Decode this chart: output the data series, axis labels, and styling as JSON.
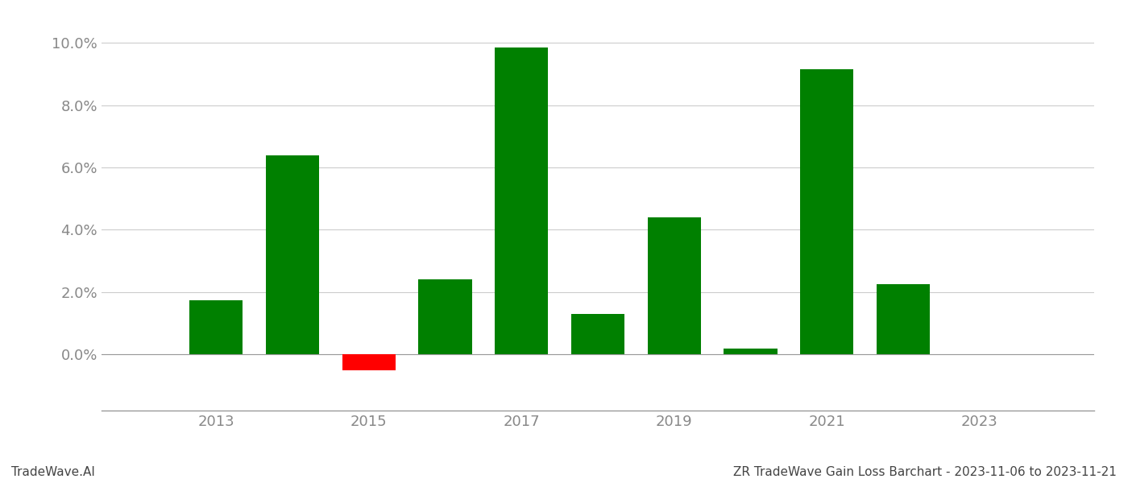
{
  "years": [
    2013,
    2014,
    2015,
    2016,
    2017,
    2018,
    2019,
    2020,
    2021,
    2022
  ],
  "values": [
    0.0175,
    0.064,
    -0.005,
    0.024,
    0.0985,
    0.013,
    0.044,
    0.002,
    0.0915,
    0.0225
  ],
  "colors": [
    "#008000",
    "#008000",
    "#ff0000",
    "#008000",
    "#008000",
    "#008000",
    "#008000",
    "#008000",
    "#008000",
    "#008000"
  ],
  "ylim": [
    -0.018,
    0.106
  ],
  "yticks": [
    0.0,
    0.02,
    0.04,
    0.06,
    0.08,
    0.1
  ],
  "xticks": [
    2013,
    2015,
    2017,
    2019,
    2021,
    2023
  ],
  "xlim": [
    2011.5,
    2024.5
  ],
  "footer_left": "TradeWave.AI",
  "footer_right": "ZR TradeWave Gain Loss Barchart - 2023-11-06 to 2023-11-21",
  "background_color": "#ffffff",
  "grid_color": "#cccccc",
  "bar_width": 0.7,
  "tick_label_color": "#888888",
  "footer_font_size": 11,
  "tick_font_size": 13
}
